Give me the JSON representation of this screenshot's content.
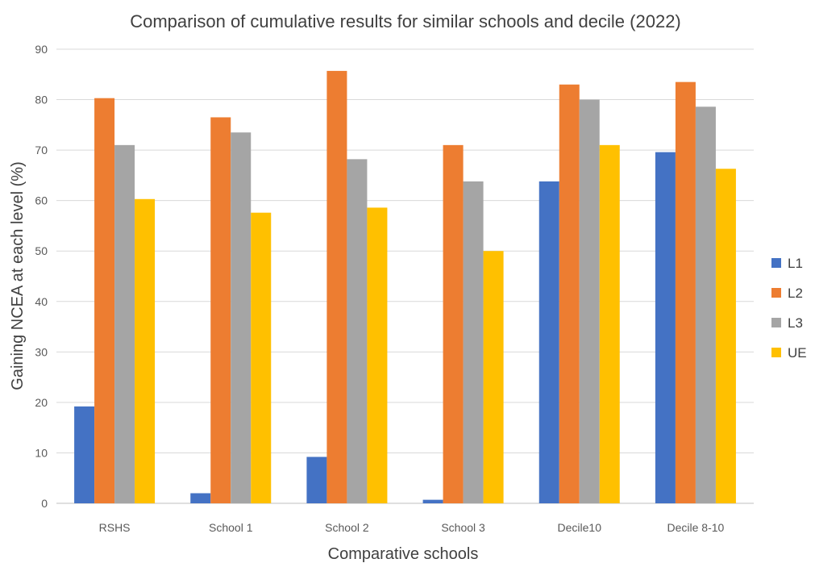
{
  "chart_data": {
    "type": "bar",
    "title": "Comparison of cumulative results for similar schools and decile (2022)",
    "xlabel": "Comparative schools",
    "ylabel": "Gaining NCEA at each level (%)",
    "ylim": [
      0,
      90
    ],
    "yticks": [
      0,
      10,
      20,
      30,
      40,
      50,
      60,
      70,
      80,
      90
    ],
    "grid": true,
    "legend_position": "right",
    "categories": [
      "RSHS",
      "School 1",
      "School 2",
      "School 3",
      "Decile10",
      "Decile 8-10"
    ],
    "series": [
      {
        "name": "L1",
        "color": "#4472c4",
        "values": [
          19.2,
          2.0,
          9.2,
          0.7,
          63.8,
          69.6
        ]
      },
      {
        "name": "L2",
        "color": "#ed7d31",
        "values": [
          80.3,
          76.5,
          85.7,
          71.0,
          83.0,
          83.5
        ]
      },
      {
        "name": "L3",
        "color": "#a5a5a5",
        "values": [
          71.0,
          73.5,
          68.2,
          63.8,
          80.0,
          78.6
        ]
      },
      {
        "name": "UE",
        "color": "#ffc000",
        "values": [
          60.3,
          57.6,
          58.6,
          50.0,
          71.0,
          66.3
        ]
      }
    ]
  }
}
